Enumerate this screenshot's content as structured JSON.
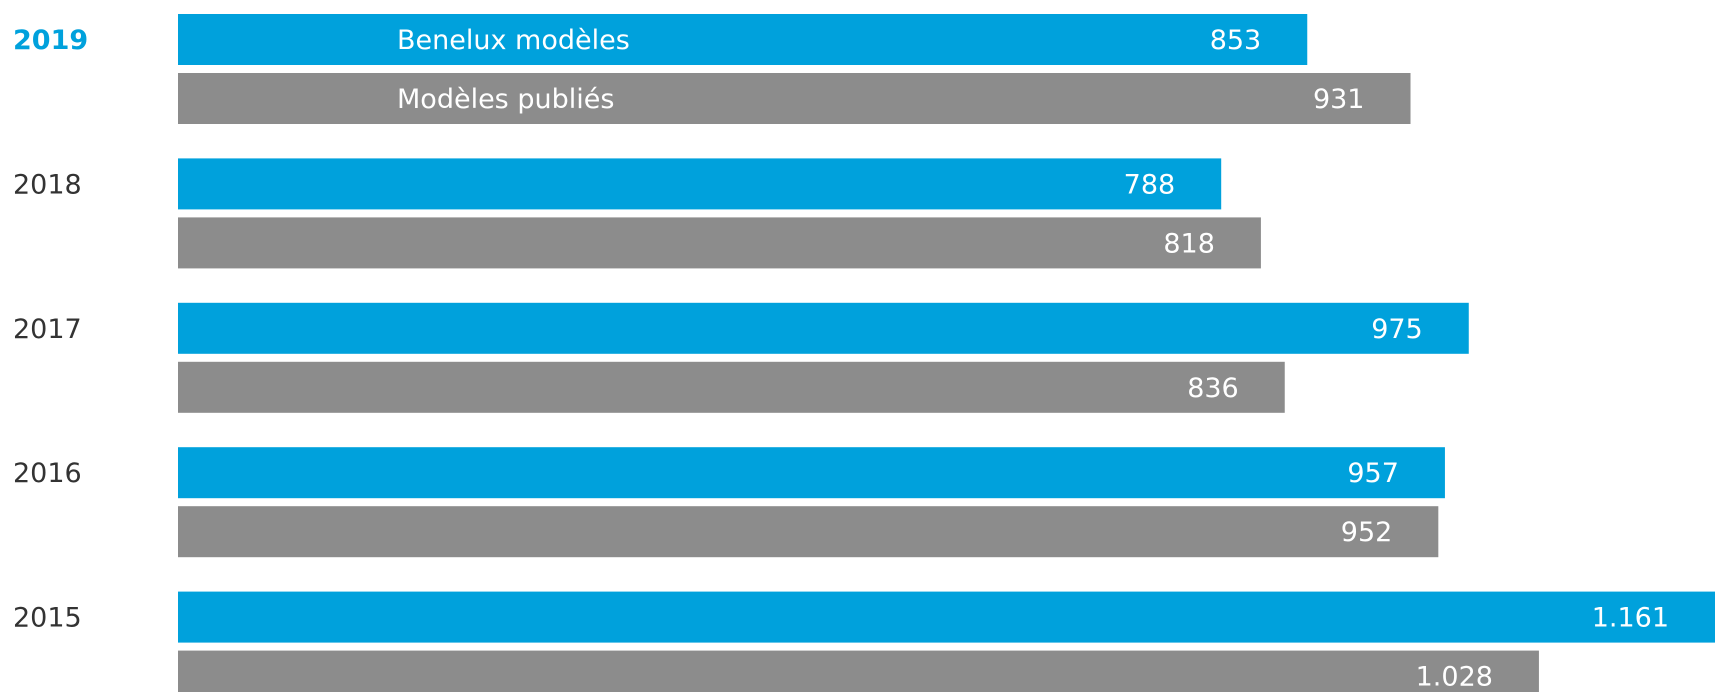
{
  "chart_data": {
    "type": "bar",
    "orientation": "horizontal",
    "categories": [
      "2019",
      "2018",
      "2017",
      "2016",
      "2015"
    ],
    "series": [
      {
        "name": "Benelux modèles",
        "color": "#00a1dc",
        "values": [
          853,
          788,
          975,
          957,
          1161
        ],
        "value_labels": [
          "853",
          "788",
          "975",
          "957",
          "1.161"
        ]
      },
      {
        "name": "Modèles publiés",
        "color": "#8c8c8c",
        "values": [
          931,
          818,
          836,
          952,
          1028
        ],
        "value_labels": [
          "931",
          "818",
          "836",
          "952",
          "1.028"
        ]
      }
    ]
  }
}
